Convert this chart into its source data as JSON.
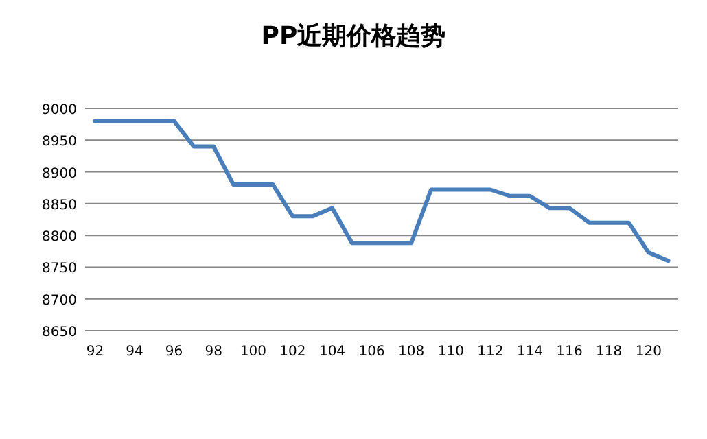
{
  "chart_data": {
    "type": "line",
    "title": "PP近期价格趋势",
    "categories": [
      "92",
      null,
      "94",
      null,
      "96",
      null,
      "98",
      null,
      "100",
      null,
      "102",
      null,
      "104",
      null,
      "106",
      null,
      "108",
      null,
      "110",
      null,
      "112",
      null,
      "114",
      null,
      "116",
      null,
      "118",
      null,
      "120",
      null
    ],
    "series": [
      {
        "color": "#4a7ebb",
        "values": [
          8980,
          8980,
          8980,
          8980,
          8980,
          8940,
          8940,
          8880,
          8880,
          8880,
          8830,
          8830,
          8843,
          8788,
          8788,
          8788,
          8788,
          8872,
          8872,
          8872,
          8872,
          8862,
          8862,
          8843,
          8843,
          8820,
          8820,
          8820,
          8773,
          8760
        ]
      }
    ],
    "ylim": [
      8650,
      9000
    ],
    "yticks": [
      8650,
      8700,
      8750,
      8800,
      8850,
      8900,
      8950,
      9000
    ],
    "grid": "y",
    "marker": "none",
    "line_style": "solid"
  }
}
